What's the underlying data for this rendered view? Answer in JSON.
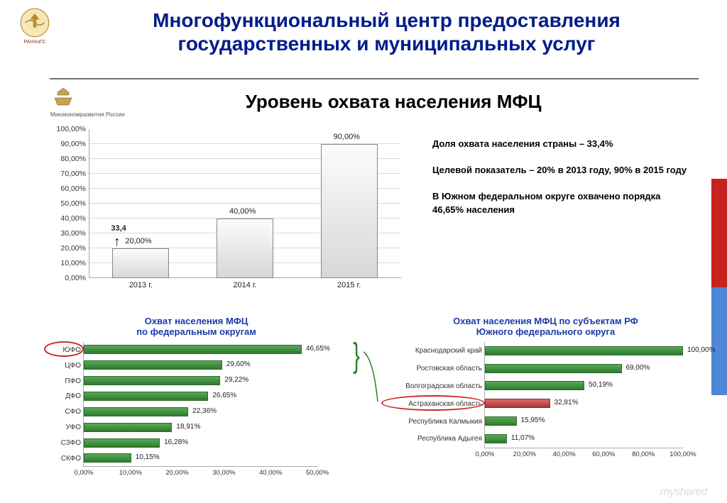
{
  "page": {
    "title": "Многофункциональный центр предоставления государственных и муниципальных услуг",
    "logo_text": "РАНХиГС",
    "title_color": "#001c8a"
  },
  "flag_colors": [
    "#ffffff",
    "#c92020",
    "#4f87d7",
    "#ffffff"
  ],
  "slide": {
    "ministry_label": "Минэкономразвития России",
    "title": "Уровень охвата населения МФЦ",
    "watermark": "myshared"
  },
  "chart1": {
    "type": "bar",
    "ylim": [
      0,
      100
    ],
    "ytick_step": 10,
    "ytick_suffix": ",00%",
    "grid_color": "#d9d9d9",
    "axis_color": "#aaaaaa",
    "bar_color": "#d7d7d7",
    "label_fontsize": 11,
    "bars": [
      {
        "cat": "2013 г.",
        "value": 20,
        "label": "20,00%",
        "badge": "33,4"
      },
      {
        "cat": "2014 г.",
        "value": 40,
        "label": "40,00%"
      },
      {
        "cat": "2015 г.",
        "value": 90,
        "label": "90,00%"
      }
    ]
  },
  "info": {
    "p1": "Доля охвата населения страны – 33,4%",
    "p2": "Целевой показатель – 20% в 2013 году, 90% в 2015 году",
    "p3": "В Южном федеральном округе охвачено порядка 46,65% населения"
  },
  "chart2": {
    "type": "bar-horizontal",
    "title": "Охват населения МФЦ\nпо федеральным округам",
    "xlim": [
      0,
      50
    ],
    "xtick_step": 10,
    "xtick_suffix": ",00%",
    "highlight_category": "ЮФО",
    "bar_color": "#2e7a2e",
    "label_fontsize": 10,
    "bars": [
      {
        "cat": "ЮФО",
        "value": 46.65,
        "label": "46,65%"
      },
      {
        "cat": "ЦФО",
        "value": 29.6,
        "label": "29,60%"
      },
      {
        "cat": "ПФО",
        "value": 29.22,
        "label": "29,22%"
      },
      {
        "cat": "ДФО",
        "value": 26.65,
        "label": "26,65%"
      },
      {
        "cat": "СФО",
        "value": 22.36,
        "label": "22,36%"
      },
      {
        "cat": "УФО",
        "value": 18.91,
        "label": "18,91%"
      },
      {
        "cat": "СЗФО",
        "value": 16.28,
        "label": "16,28%"
      },
      {
        "cat": "СКФО",
        "value": 10.15,
        "label": "10,15%"
      }
    ]
  },
  "chart3": {
    "type": "bar-horizontal",
    "title": "Охват населения МФЦ по субъектам РФ\nЮжного федерального округа",
    "xlim": [
      0,
      100
    ],
    "xtick_step": 20,
    "xtick_suffix": ",00%",
    "highlight_category": "Астраханская область",
    "bar_color": "#2e7a2e",
    "highlight_bar_color": "#b13232",
    "label_fontsize": 10,
    "bars": [
      {
        "cat": "Краснодарский край",
        "value": 100.0,
        "label": "100,00%"
      },
      {
        "cat": "Ростовская область",
        "value": 69.0,
        "label": "69,00%"
      },
      {
        "cat": "Волгоградская область",
        "value": 50.19,
        "label": "50,19%"
      },
      {
        "cat": "Астраханская область",
        "value": 32.81,
        "label": "32,81%"
      },
      {
        "cat": "Республика Калмыкия",
        "value": 15.95,
        "label": "15,95%"
      },
      {
        "cat": "Республика Адыгея",
        "value": 11.07,
        "label": "11,07%"
      }
    ]
  }
}
